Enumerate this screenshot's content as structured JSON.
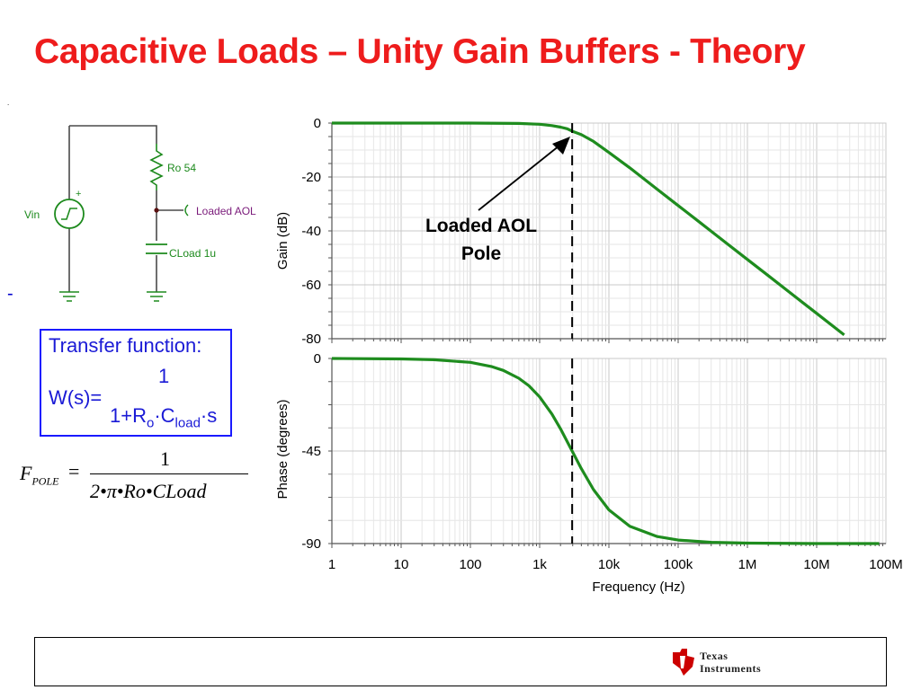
{
  "slide": {
    "title": "Capacitive Loads – Unity Gain Buffers - Theory",
    "small_mark": ".",
    "side_mark": "-"
  },
  "schematic": {
    "source_label": "Vin",
    "source_plus": "+",
    "resistor_label": "Ro 54",
    "node_label": "Loaded AOL",
    "capacitor_label": "CLoad 1u",
    "colors": {
      "wire": "#4a4a4a",
      "component": "#1d8a1d",
      "label_node": "#7a1a7a",
      "label_other": "#1d8a1d"
    }
  },
  "transfer_function": {
    "heading": "Transfer function:",
    "lhs": "W(s)=",
    "numerator": "1",
    "den_a": "1+R",
    "den_o": "o",
    "den_b": "·C",
    "den_load": "load",
    "den_c": "·s"
  },
  "fpole_formula": {
    "lhs": "F",
    "lhs_sub": "POLE",
    "equals": "=",
    "numerator": "1",
    "denominator": "2•π•Ro•CLoad"
  },
  "annotation": {
    "line1": "Loaded AOL",
    "line2": "Pole"
  },
  "footer": {
    "brand_line1": "Texas",
    "brand_line2": "Instruments",
    "brand_color": "#cc0000"
  },
  "chart_data": [
    {
      "type": "line",
      "title": "",
      "xlabel": "",
      "ylabel": "Gain (dB)",
      "x_scale": "log",
      "xlim": [
        1,
        100000000
      ],
      "ylim": [
        -80,
        0
      ],
      "y_ticks": [
        0,
        -20,
        -40,
        -60,
        -80
      ],
      "grid": true,
      "series": [
        {
          "color": "#1e8c1e",
          "x": [
            1,
            10,
            100,
            500,
            1000,
            1500,
            2000,
            2500,
            2947,
            4000,
            6000,
            10000,
            20000,
            50000,
            100000,
            200000,
            500000,
            1000000,
            2000000,
            5000000,
            10000000,
            25000000
          ],
          "y": [
            0,
            0,
            0,
            -0.12,
            -0.45,
            -0.93,
            -1.5,
            -2.1,
            -3.0,
            -4.3,
            -6.8,
            -10.9,
            -16.6,
            -24.6,
            -30.6,
            -36.6,
            -44.6,
            -50.6,
            -56.6,
            -64.6,
            -70.6,
            -78.6
          ]
        }
      ],
      "marker_x": 2947
    },
    {
      "type": "line",
      "title": "",
      "xlabel": "Frequency (Hz)",
      "ylabel": "Phase (degrees)",
      "x_scale": "log",
      "xlim": [
        1,
        100000000
      ],
      "x_ticks": [
        1,
        10,
        100,
        1000,
        10000,
        100000,
        1000000,
        10000000,
        100000000
      ],
      "x_tick_labels": [
        "1",
        "10",
        "100",
        "1k",
        "10k",
        "100k",
        "1M",
        "10M",
        "100M"
      ],
      "ylim": [
        -90,
        0
      ],
      "y_ticks": [
        0,
        -45,
        -90
      ],
      "grid": true,
      "series": [
        {
          "color": "#1e8c1e",
          "x": [
            1,
            10,
            30,
            100,
            200,
            300,
            500,
            700,
            1000,
            1500,
            2000,
            2947,
            4000,
            6000,
            10000,
            20000,
            50000,
            100000,
            300000,
            1000000,
            10000000,
            25000000,
            80000000
          ],
          "y": [
            0,
            -0.2,
            -0.6,
            -1.9,
            -3.9,
            -5.8,
            -9.6,
            -13.3,
            -18.7,
            -27.0,
            -34.2,
            -45.0,
            -53.6,
            -63.8,
            -73.6,
            -81.6,
            -86.6,
            -88.3,
            -89.4,
            -89.8,
            -90.0,
            -90.0,
            -90.0
          ]
        }
      ],
      "marker_x": 2947
    }
  ]
}
